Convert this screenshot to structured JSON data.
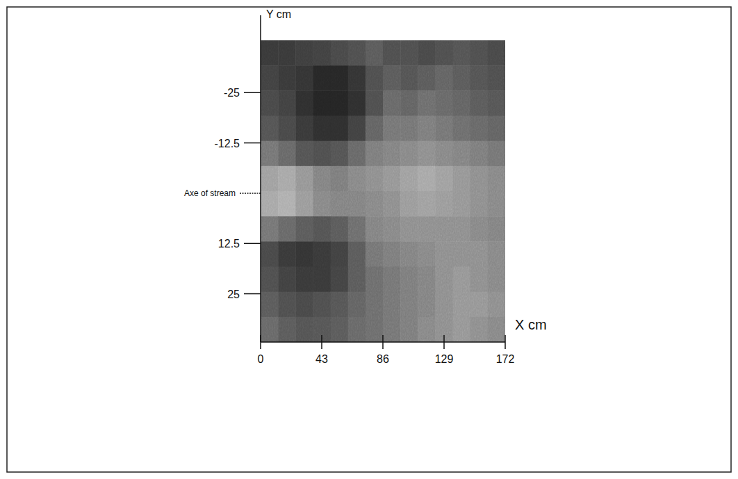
{
  "chart_data": {
    "type": "heatmap",
    "x_label": "X cm",
    "y_label": "Y cm",
    "xlim": [
      0,
      172
    ],
    "ylim": [
      -38,
      37
    ],
    "xticks": [
      0,
      43,
      86,
      129,
      172
    ],
    "yticks": [
      -25,
      -12.5,
      {
        "value": 0,
        "label": "Axe of stream"
      },
      12.5,
      25
    ],
    "color": "gray",
    "cells": [
      [
        22,
        22,
        24,
        25,
        28,
        30,
        35,
        30,
        30,
        28,
        30,
        32,
        30,
        28
      ],
      [
        25,
        22,
        20,
        15,
        15,
        20,
        30,
        35,
        32,
        35,
        38,
        35,
        32,
        30
      ],
      [
        28,
        25,
        18,
        14,
        14,
        18,
        30,
        40,
        38,
        42,
        40,
        38,
        35,
        33
      ],
      [
        32,
        28,
        22,
        18,
        18,
        25,
        38,
        45,
        45,
        48,
        45,
        42,
        40,
        38
      ],
      [
        45,
        40,
        32,
        30,
        32,
        40,
        48,
        50,
        52,
        55,
        52,
        50,
        48,
        45
      ],
      [
        62,
        65,
        58,
        50,
        48,
        52,
        55,
        58,
        62,
        65,
        62,
        58,
        55,
        52
      ],
      [
        65,
        68,
        60,
        52,
        50,
        50,
        52,
        55,
        60,
        62,
        60,
        58,
        55,
        52
      ],
      [
        45,
        40,
        35,
        32,
        35,
        42,
        50,
        52,
        55,
        55,
        55,
        55,
        52,
        50
      ],
      [
        28,
        22,
        20,
        22,
        25,
        35,
        45,
        48,
        50,
        52,
        55,
        55,
        55,
        52
      ],
      [
        30,
        25,
        22,
        22,
        26,
        35,
        42,
        45,
        48,
        50,
        55,
        58,
        55,
        52
      ],
      [
        35,
        30,
        28,
        30,
        33,
        38,
        42,
        45,
        48,
        50,
        55,
        58,
        58,
        55
      ],
      [
        40,
        35,
        32,
        33,
        35,
        40,
        42,
        45,
        48,
        52,
        55,
        58,
        55,
        52
      ]
    ]
  }
}
